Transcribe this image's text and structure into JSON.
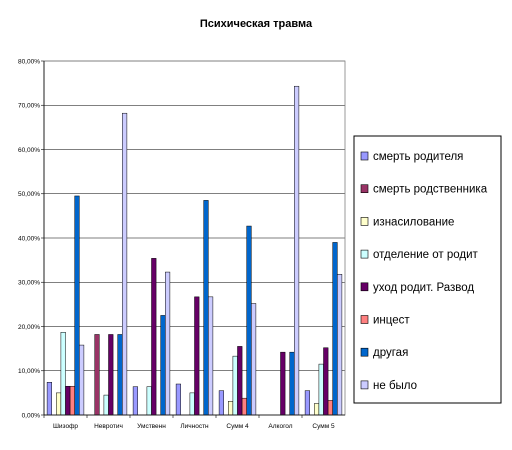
{
  "chart_data": {
    "type": "bar",
    "title": "Психическая травма",
    "xlabel": "",
    "ylabel": "",
    "categories": [
      "Шизофр",
      "Невротич",
      "Умственн",
      "Личностн",
      "Сумм 4",
      "Алкогол",
      "Сумм 5"
    ],
    "ylim": [
      0,
      80
    ],
    "yticks": [
      0,
      10,
      20,
      30,
      40,
      50,
      60,
      70,
      80
    ],
    "ytick_labels": [
      "0,00%",
      "10,00%",
      "20,00%",
      "30,00%",
      "40,00%",
      "50,00%",
      "60,00%",
      "70,00%",
      "80,00%"
    ],
    "grid": true,
    "legend_position": "right",
    "series": [
      {
        "name": "смерть родителя",
        "color": "#9999ff",
        "values": [
          7.4,
          0,
          6.4,
          7.0,
          5.5,
          0,
          5.5
        ]
      },
      {
        "name": "смерть родственника",
        "color": "#993366",
        "values": [
          0,
          18.2,
          0,
          0,
          0,
          0,
          0
        ]
      },
      {
        "name": "изнасилование",
        "color": "#ffffcc",
        "values": [
          5.0,
          0,
          0,
          0,
          3.1,
          0,
          2.6
        ]
      },
      {
        "name": "отделение от родит",
        "color": "#ccffff",
        "values": [
          18.7,
          4.5,
          6.4,
          5.0,
          13.3,
          0,
          11.5
        ]
      },
      {
        "name": "уход родит. Развод",
        "color": "#660066",
        "values": [
          6.5,
          18.2,
          35.4,
          26.7,
          15.5,
          14.2,
          15.2
        ]
      },
      {
        "name": "инцест",
        "color": "#ff8080",
        "values": [
          6.5,
          0,
          0,
          0,
          3.8,
          0,
          3.3
        ]
      },
      {
        "name": "другая",
        "color": "#0066cc",
        "values": [
          49.5,
          18.2,
          22.5,
          48.5,
          42.7,
          14.2,
          39.0
        ]
      },
      {
        "name": "не было",
        "color": "#ccccff",
        "values": [
          15.8,
          68.2,
          32.3,
          26.7,
          25.2,
          74.3,
          31.8
        ]
      }
    ]
  }
}
